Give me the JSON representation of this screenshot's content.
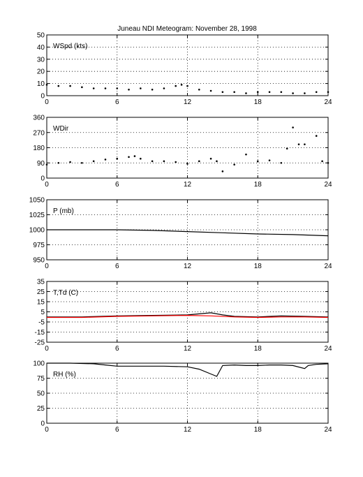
{
  "title": "Juneau NDI Meteogram:  November 28, 1998",
  "colors": {
    "axes": "#000000",
    "grid": "#000000",
    "primary": "#000000",
    "secondary": "#ff0000"
  },
  "chart_data": [
    {
      "type": "scatter",
      "panel_label": "WSpd (kts)",
      "xlim": [
        0,
        24
      ],
      "xticks": [
        0,
        6,
        12,
        18,
        24
      ],
      "ylim": [
        0,
        50
      ],
      "yticks": [
        0,
        10,
        20,
        30,
        40,
        50
      ],
      "grid": true,
      "series": [
        {
          "color": "#000000",
          "points": [
            [
              0,
              9
            ],
            [
              1,
              8
            ],
            [
              2,
              8
            ],
            [
              3,
              7
            ],
            [
              4,
              6
            ],
            [
              5,
              6
            ],
            [
              6,
              6
            ],
            [
              7,
              5
            ],
            [
              8,
              6
            ],
            [
              9,
              5
            ],
            [
              10,
              6
            ],
            [
              11,
              8
            ],
            [
              11.5,
              9
            ],
            [
              12,
              8
            ],
            [
              13,
              5
            ],
            [
              14,
              4
            ],
            [
              15,
              3
            ],
            [
              16,
              3
            ],
            [
              17,
              2
            ],
            [
              18,
              3
            ],
            [
              19,
              3
            ],
            [
              20,
              3
            ],
            [
              21,
              2
            ],
            [
              22,
              2
            ],
            [
              23,
              3
            ],
            [
              24,
              3
            ]
          ]
        }
      ]
    },
    {
      "type": "scatter",
      "panel_label": "WDir",
      "xlim": [
        0,
        24
      ],
      "xticks": [
        0,
        6,
        12,
        18,
        24
      ],
      "ylim": [
        0,
        360
      ],
      "yticks": [
        0,
        90,
        180,
        270,
        360
      ],
      "grid": true,
      "series": [
        {
          "color": "#000000",
          "points": [
            [
              0,
              80
            ],
            [
              1,
              90
            ],
            [
              2,
              95
            ],
            [
              3,
              90
            ],
            [
              4,
              100
            ],
            [
              5,
              110
            ],
            [
              6,
              115
            ],
            [
              7,
              125
            ],
            [
              7.5,
              130
            ],
            [
              8,
              115
            ],
            [
              9,
              100
            ],
            [
              10,
              100
            ],
            [
              11,
              95
            ],
            [
              12,
              85
            ],
            [
              13,
              100
            ],
            [
              14,
              115
            ],
            [
              14.5,
              100
            ],
            [
              15,
              40
            ],
            [
              16,
              80
            ],
            [
              17,
              140
            ],
            [
              18,
              100
            ],
            [
              19,
              105
            ],
            [
              20,
              90
            ],
            [
              20.5,
              175
            ],
            [
              21,
              300
            ],
            [
              21.5,
              200
            ],
            [
              22,
              200
            ],
            [
              23,
              250
            ],
            [
              23.5,
              100
            ],
            [
              24,
              90
            ]
          ]
        }
      ]
    },
    {
      "type": "line",
      "panel_label": "P (mb)",
      "xlim": [
        0,
        24
      ],
      "xticks": [
        0,
        6,
        12,
        18,
        24
      ],
      "ylim": [
        950,
        1050
      ],
      "yticks": [
        950,
        975,
        1000,
        1025,
        1050
      ],
      "grid": true,
      "series": [
        {
          "color": "#000000",
          "points": [
            [
              0,
              1000
            ],
            [
              6,
              1000
            ],
            [
              9,
              999
            ],
            [
              12,
              997
            ],
            [
              15,
              995
            ],
            [
              18,
              993
            ],
            [
              21,
              992
            ],
            [
              24,
              990
            ]
          ]
        }
      ]
    },
    {
      "type": "line",
      "panel_label": "T,Td (C)",
      "xlim": [
        0,
        24
      ],
      "xticks": [
        0,
        6,
        12,
        18,
        24
      ],
      "ylim": [
        -25,
        35
      ],
      "yticks": [
        -25,
        -15,
        -5,
        5,
        15,
        25,
        35
      ],
      "grid": true,
      "series": [
        {
          "color": "#000000",
          "points": [
            [
              0,
              0
            ],
            [
              3,
              0
            ],
            [
              6,
              1
            ],
            [
              9,
              1.5
            ],
            [
              12,
              2
            ],
            [
              13,
              3
            ],
            [
              14,
              4
            ],
            [
              15,
              2
            ],
            [
              16,
              0.5
            ],
            [
              18,
              0
            ],
            [
              20,
              1
            ],
            [
              22,
              0.5
            ],
            [
              24,
              0
            ]
          ]
        },
        {
          "color": "#ff0000",
          "points": [
            [
              0,
              -0.5
            ],
            [
              3,
              -0.5
            ],
            [
              6,
              0.5
            ],
            [
              9,
              1
            ],
            [
              12,
              1.5
            ],
            [
              14,
              1
            ],
            [
              16,
              0
            ],
            [
              18,
              -0.5
            ],
            [
              20,
              0
            ],
            [
              22,
              0
            ],
            [
              24,
              -0.5
            ]
          ]
        }
      ]
    },
    {
      "type": "line",
      "panel_label": "RH (%)",
      "xlim": [
        0,
        24
      ],
      "xticks": [
        0,
        6,
        12,
        18,
        24
      ],
      "ylim": [
        0,
        100
      ],
      "yticks": [
        0,
        25,
        50,
        75,
        100
      ],
      "grid": true,
      "series": [
        {
          "color": "#000000",
          "points": [
            [
              0,
              100
            ],
            [
              2,
              100
            ],
            [
              4,
              99
            ],
            [
              5,
              97
            ],
            [
              6,
              95
            ],
            [
              8,
              95
            ],
            [
              10,
              95
            ],
            [
              12,
              94
            ],
            [
              13,
              90
            ],
            [
              14,
              82
            ],
            [
              14.5,
              78
            ],
            [
              15,
              96
            ],
            [
              16,
              97
            ],
            [
              17,
              96
            ],
            [
              18,
              96
            ],
            [
              19,
              97
            ],
            [
              20,
              97
            ],
            [
              21,
              96
            ],
            [
              22,
              91
            ],
            [
              22.3,
              96
            ],
            [
              23,
              98
            ],
            [
              24,
              99
            ]
          ]
        }
      ]
    }
  ]
}
